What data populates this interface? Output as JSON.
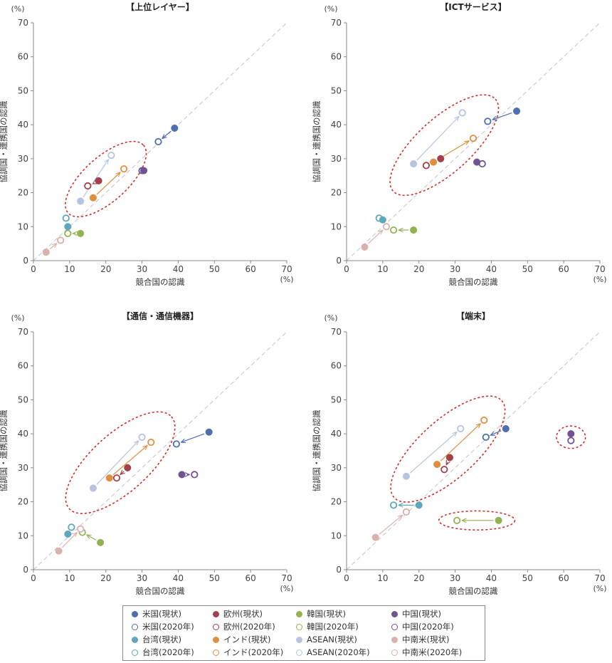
{
  "colors": {
    "us": "#4f6faf",
    "eu": "#a3404a",
    "kr": "#93b352",
    "cn": "#6f5494",
    "tw": "#5ea7bd",
    "in": "#e18f3e",
    "asean": "#b6c4e0",
    "latam": "#dbb1ad",
    "ellipse": "#d92b2b",
    "diagonal": "#bfc3cc",
    "axis": "#888888"
  },
  "legend": [
    {
      "key": "us",
      "label": "米国(現状)",
      "filled": true
    },
    {
      "key": "eu",
      "label": "欧州(現状)",
      "filled": true
    },
    {
      "key": "kr",
      "label": "韓国(現状)",
      "filled": true
    },
    {
      "key": "cn",
      "label": "中国(現状)",
      "filled": true
    },
    {
      "key": "us",
      "label": "米国(2020年)",
      "filled": false
    },
    {
      "key": "eu",
      "label": "欧州(2020年)",
      "filled": false
    },
    {
      "key": "kr",
      "label": "韓国(2020年)",
      "filled": false
    },
    {
      "key": "cn",
      "label": "中国(2020年)",
      "filled": false
    },
    {
      "key": "tw",
      "label": "台湾(現状)",
      "filled": true
    },
    {
      "key": "in",
      "label": "インド(現状)",
      "filled": true
    },
    {
      "key": "asean",
      "label": "ASEAN(現状)",
      "filled": true
    },
    {
      "key": "latam",
      "label": "中南米(現状)",
      "filled": true
    },
    {
      "key": "tw",
      "label": "台湾(2020年)",
      "filled": false
    },
    {
      "key": "in",
      "label": "インド(2020年)",
      "filled": false
    },
    {
      "key": "asean",
      "label": "ASEAN(2020年)",
      "filled": false
    },
    {
      "key": "latam",
      "label": "中南米(2020年)",
      "filled": false
    }
  ],
  "chart_data": [
    {
      "type": "scatter",
      "title": "【上位レイヤー】",
      "xlabel": "競合国の認識",
      "ylabel": "協調国・連携国の認識",
      "unit": "(%)",
      "xlim": [
        0,
        70
      ],
      "ylim": [
        0,
        70
      ],
      "ticks": [
        0,
        10,
        20,
        30,
        40,
        50,
        60,
        70
      ],
      "diagonal": true,
      "series": [
        {
          "key": "us",
          "current": [
            39,
            39
          ],
          "future": [
            34.5,
            35
          ]
        },
        {
          "key": "eu",
          "current": [
            18,
            23.5
          ],
          "future": [
            15,
            22
          ]
        },
        {
          "key": "kr",
          "current": [
            13,
            8
          ],
          "future": [
            9.5,
            8
          ]
        },
        {
          "key": "cn",
          "current": [
            30.5,
            26.5
          ],
          "future": [
            30,
            26.5
          ]
        },
        {
          "key": "tw",
          "current": [
            9.5,
            10
          ],
          "future": [
            9,
            12.5
          ]
        },
        {
          "key": "in",
          "current": [
            16.5,
            18.5
          ],
          "future": [
            25,
            27
          ]
        },
        {
          "key": "asean",
          "current": [
            13,
            17.5
          ],
          "future": [
            21.5,
            31
          ]
        },
        {
          "key": "latam",
          "current": [
            3.5,
            2.5
          ],
          "future": [
            7.5,
            6
          ]
        }
      ],
      "ellipses": [
        {
          "cx": 20,
          "cy": 24,
          "rx": 14,
          "ry": 6.5,
          "rot": -42
        }
      ]
    },
    {
      "type": "scatter",
      "title": "【ICTサービス】",
      "xlabel": "競合国の認識",
      "ylabel": "協調国・連携国の認識",
      "unit": "(%)",
      "xlim": [
        0,
        70
      ],
      "ylim": [
        0,
        70
      ],
      "ticks": [
        0,
        10,
        20,
        30,
        40,
        50,
        60,
        70
      ],
      "diagonal": true,
      "series": [
        {
          "key": "us",
          "current": [
            47,
            44
          ],
          "future": [
            39,
            41
          ]
        },
        {
          "key": "eu",
          "current": [
            26,
            30
          ],
          "future": [
            22,
            28
          ]
        },
        {
          "key": "kr",
          "current": [
            18.5,
            9
          ],
          "future": [
            13,
            9
          ]
        },
        {
          "key": "cn",
          "current": [
            36,
            29
          ],
          "future": [
            37.5,
            28.5
          ]
        },
        {
          "key": "tw",
          "current": [
            10,
            12
          ],
          "future": [
            9,
            12.5
          ]
        },
        {
          "key": "in",
          "current": [
            24,
            29
          ],
          "future": [
            35,
            36
          ]
        },
        {
          "key": "asean",
          "current": [
            18.5,
            28.5
          ],
          "future": [
            32,
            43.5
          ]
        },
        {
          "key": "latam",
          "current": [
            5,
            4
          ],
          "future": [
            11,
            10
          ]
        }
      ],
      "ellipses": [
        {
          "cx": 27,
          "cy": 34,
          "rx": 19,
          "ry": 8,
          "rot": -42
        }
      ]
    },
    {
      "type": "scatter",
      "title": "【通信・通信機器】",
      "xlabel": "競合国の認識",
      "ylabel": "協調国・連携国の認識",
      "unit": "(%)",
      "xlim": [
        0,
        70
      ],
      "ylim": [
        0,
        70
      ],
      "ticks": [
        0,
        10,
        20,
        30,
        40,
        50,
        60,
        70
      ],
      "diagonal": true,
      "series": [
        {
          "key": "us",
          "current": [
            48.5,
            40.5
          ],
          "future": [
            39.5,
            37
          ]
        },
        {
          "key": "eu",
          "current": [
            26,
            30
          ],
          "future": [
            23,
            27
          ]
        },
        {
          "key": "kr",
          "current": [
            18.5,
            8
          ],
          "future": [
            13.5,
            11
          ]
        },
        {
          "key": "cn",
          "current": [
            41,
            28
          ],
          "future": [
            44.5,
            28
          ]
        },
        {
          "key": "tw",
          "current": [
            9.5,
            10.5
          ],
          "future": [
            10.5,
            12.5
          ]
        },
        {
          "key": "in",
          "current": [
            21,
            27
          ],
          "future": [
            32.5,
            37.5
          ]
        },
        {
          "key": "asean",
          "current": [
            16.5,
            24
          ],
          "future": [
            30,
            39
          ]
        },
        {
          "key": "latam",
          "current": [
            7,
            5.5
          ],
          "future": [
            13,
            12
          ]
        }
      ],
      "ellipses": [
        {
          "cx": 24,
          "cy": 31.5,
          "rx": 19,
          "ry": 8.5,
          "rot": -42
        }
      ]
    },
    {
      "type": "scatter",
      "title": "【端末】",
      "xlabel": "競合国の認識",
      "ylabel": "協調国・連携国の認識",
      "unit": "(%)",
      "xlim": [
        0,
        70
      ],
      "ylim": [
        0,
        70
      ],
      "ticks": [
        0,
        10,
        20,
        30,
        40,
        50,
        60,
        70
      ],
      "diagonal": true,
      "series": [
        {
          "key": "us",
          "current": [
            44,
            41.5
          ],
          "future": [
            38.5,
            39
          ]
        },
        {
          "key": "eu",
          "current": [
            28.5,
            33
          ],
          "future": [
            27,
            29.5
          ]
        },
        {
          "key": "kr",
          "current": [
            42,
            14.5
          ],
          "future": [
            30.5,
            14.5
          ]
        },
        {
          "key": "cn",
          "current": [
            62,
            40
          ],
          "future": [
            62,
            38
          ]
        },
        {
          "key": "tw",
          "current": [
            20,
            19
          ],
          "future": [
            13,
            19
          ]
        },
        {
          "key": "in",
          "current": [
            25,
            31
          ],
          "future": [
            38,
            44
          ]
        },
        {
          "key": "asean",
          "current": [
            16.5,
            27.5
          ],
          "future": [
            31.5,
            41.5
          ]
        },
        {
          "key": "latam",
          "current": [
            8,
            9.5
          ],
          "future": [
            16.5,
            17
          ]
        }
      ],
      "ellipses": [
        {
          "cx": 28,
          "cy": 35.5,
          "rx": 20,
          "ry": 8.5,
          "rot": -42
        },
        {
          "cx": 62,
          "cy": 39,
          "rx": 4,
          "ry": 3.3,
          "rot": 0
        },
        {
          "cx": 36,
          "cy": 14.5,
          "rx": 10.5,
          "ry": 2.8,
          "rot": 0
        }
      ]
    }
  ]
}
